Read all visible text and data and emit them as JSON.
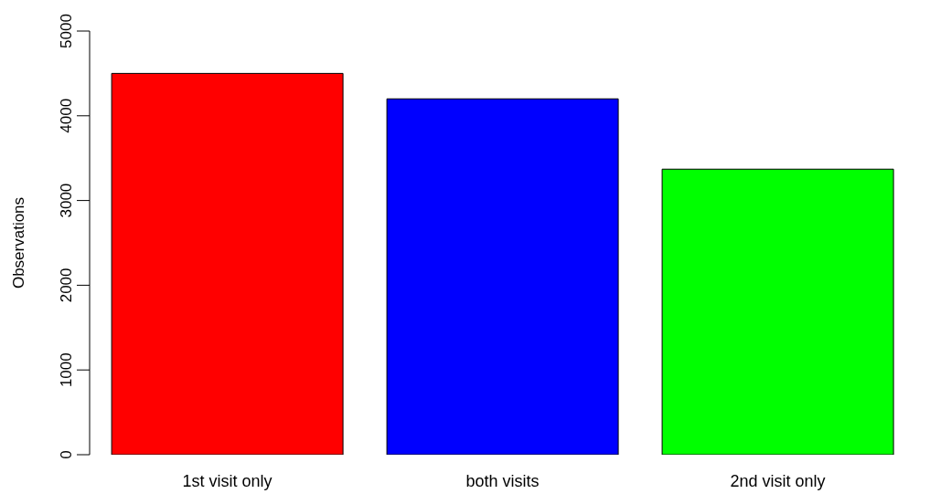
{
  "chart_data": {
    "type": "bar",
    "ylabel": "Observations",
    "categories": [
      "1st visit only",
      "both visits",
      "2nd visit only"
    ],
    "values": [
      4500,
      4200,
      3370
    ],
    "colors": [
      "#ff0000",
      "#0000ff",
      "#00ff00"
    ],
    "ylim": [
      0,
      5000
    ],
    "yticks": [
      0,
      1000,
      2000,
      3000,
      4000,
      5000
    ],
    "grid": false,
    "legend": false
  }
}
